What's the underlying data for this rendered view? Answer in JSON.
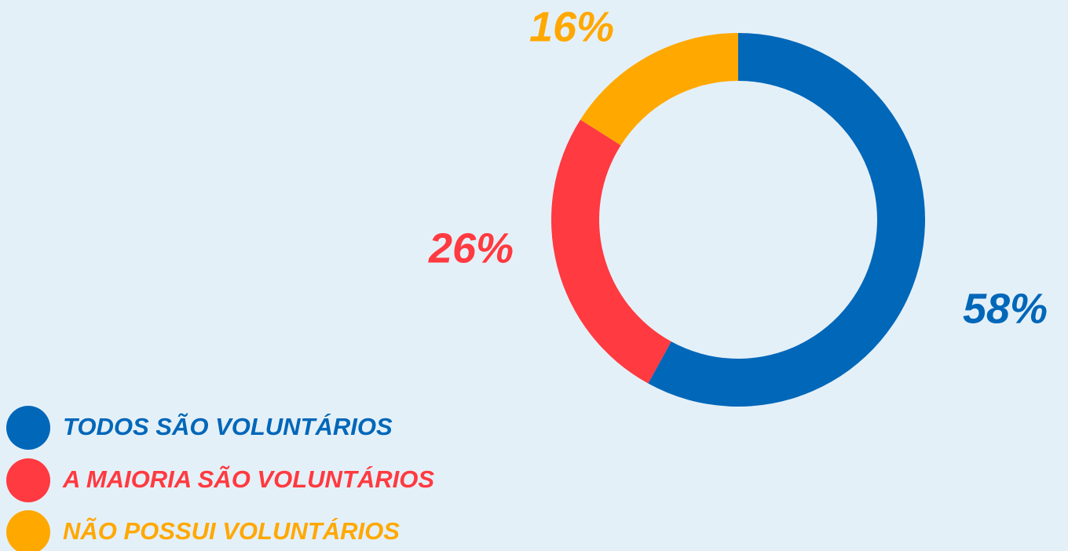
{
  "chart_data": {
    "type": "donut",
    "categories": [
      "TODOS SÃO VOLUNTÁRIOS",
      "A MAIORIA SÃO VOLUNTÁRIOS",
      "NÃO POSSUI VOLUNTÁRIOS"
    ],
    "values": [
      58,
      26,
      16
    ],
    "value_labels": [
      "58%",
      "26%",
      "16%"
    ],
    "colors": [
      "#0067b9",
      "#ff3a40",
      "#ffa800"
    ]
  }
}
